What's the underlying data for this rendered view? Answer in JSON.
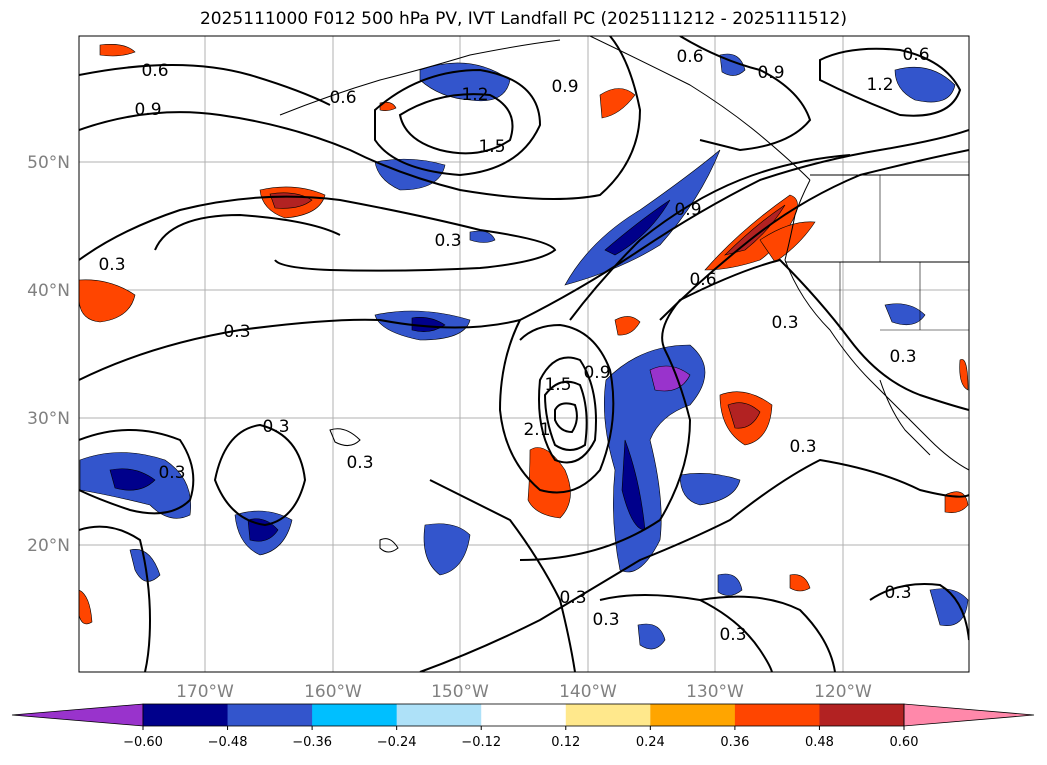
{
  "title": "2025111000 F012 500 hPa PV, IVT Landfall PC (2025111212 - 2025111512)",
  "map": {
    "lat_labels": [
      "50°N",
      "40°N",
      "30°N",
      "20°N"
    ],
    "lon_labels": [
      "170°W",
      "160°W",
      "150°W",
      "140°W",
      "130°W",
      "120°W"
    ],
    "contour_labels": [
      "0.6",
      "0.9",
      "0.6",
      "1.2",
      "1.5",
      "0.9",
      "0.6",
      "0.9",
      "0.6",
      "1.2",
      "0.3",
      "0.3",
      "0.9",
      "0.6",
      "0.3",
      "0.3",
      "1.5",
      "0.9",
      "2.1",
      "0.3",
      "0.3",
      "0.3",
      "0.3",
      "0.3",
      "0.3",
      "0.3",
      "0.3",
      "0.3"
    ],
    "colors": {
      "land_line": "#000000",
      "grid": "#b0b0b0",
      "contour": "#000000"
    }
  },
  "colorbar": {
    "ticks": [
      "−0.60",
      "−0.48",
      "−0.36",
      "−0.24",
      "−0.12",
      "0.12",
      "0.24",
      "0.36",
      "0.48",
      "0.60"
    ],
    "colors": [
      "#9933cc",
      "#00008b",
      "#3355cc",
      "#00bfff",
      "#aee1f8",
      "#ffffff",
      "#ffe88c",
      "#ffa500",
      "#ff4500",
      "#b22222",
      "#ff88aa"
    ]
  }
}
